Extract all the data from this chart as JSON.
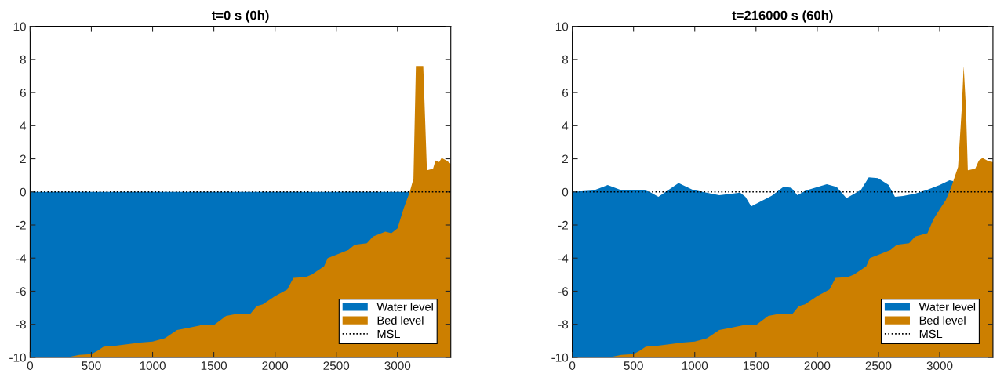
{
  "chart_data": [
    {
      "type": "area",
      "title": "t=0 s (0h)",
      "xlim": [
        0,
        3435
      ],
      "ylim": [
        -10,
        10
      ],
      "xticks": [
        0,
        500,
        1000,
        1500,
        2000,
        2500,
        3000
      ],
      "yticks": [
        -10,
        -8,
        -6,
        -4,
        -2,
        0,
        2,
        4,
        6,
        8,
        10
      ],
      "grid": false,
      "legend": "bottom right",
      "series": [
        {
          "name": "Water level",
          "color": "#0072bd",
          "x": [
            0,
            500,
            1000,
            1500,
            2000,
            2500,
            3000,
            3100
          ],
          "values": [
            0,
            0,
            0,
            0,
            0,
            0,
            0,
            0
          ]
        },
        {
          "name": "Bed level",
          "color": "#cc7f00",
          "x": [
            0,
            300,
            400,
            500,
            550,
            600,
            700,
            800,
            900,
            1000,
            1100,
            1200,
            1300,
            1400,
            1500,
            1600,
            1700,
            1800,
            1850,
            1900,
            2000,
            2100,
            2150,
            2250,
            2300,
            2400,
            2430,
            2500,
            2600,
            2650,
            2750,
            2800,
            2900,
            2950,
            3000,
            3050,
            3100,
            3130,
            3150,
            3210,
            3240,
            3290,
            3310,
            3340,
            3360,
            3400,
            3435
          ],
          "values": [
            -10,
            -10,
            -9.85,
            -9.8,
            -9.6,
            -9.35,
            -9.3,
            -9.2,
            -9.1,
            -9.05,
            -8.85,
            -8.35,
            -8.2,
            -8.05,
            -8.05,
            -7.5,
            -7.35,
            -7.35,
            -6.9,
            -6.8,
            -6.3,
            -5.9,
            -5.2,
            -5.15,
            -5.0,
            -4.5,
            -4.0,
            -3.8,
            -3.5,
            -3.2,
            -3.1,
            -2.7,
            -2.4,
            -2.5,
            -2.2,
            -1.0,
            0.0,
            0.8,
            7.6,
            7.6,
            1.3,
            1.4,
            1.9,
            1.8,
            2.05,
            1.9,
            1.7
          ]
        }
      ],
      "ref_lines": [
        {
          "axis": "y",
          "value": 0,
          "label": "MSL",
          "color": "#000000",
          "line_style": "dotted"
        }
      ]
    },
    {
      "type": "area",
      "title": "t=216000 s (60h)",
      "xlim": [
        0,
        3435
      ],
      "ylim": [
        -10,
        10
      ],
      "xticks": [
        0,
        500,
        1000,
        1500,
        2000,
        2500,
        3000
      ],
      "yticks": [
        -10,
        -8,
        -6,
        -4,
        -2,
        0,
        2,
        4,
        6,
        8,
        10
      ],
      "grid": false,
      "legend": "bottom right",
      "series": [
        {
          "name": "Water level",
          "color": "#0072bd",
          "x": [
            0,
            171,
            289,
            407,
            578,
            632,
            703,
            868,
            985,
            1200,
            1371,
            1414,
            1461,
            1628,
            1725,
            1789,
            1838,
            1907,
            2078,
            2159,
            2239,
            2357,
            2421,
            2496,
            2582,
            2635,
            2700,
            2800,
            2900,
            3000,
            3080,
            3110
          ],
          "values": [
            0,
            0.08,
            0.41,
            0.08,
            0.12,
            0,
            -0.3,
            0.54,
            0.12,
            -0.2,
            -0.05,
            -0.3,
            -0.88,
            -0.23,
            0.31,
            0.25,
            -0.2,
            0.08,
            0.46,
            0.3,
            -0.38,
            0.12,
            0.88,
            0.83,
            0.43,
            -0.3,
            -0.25,
            -0.1,
            0.13,
            0.42,
            0.7,
            0.65
          ]
        },
        {
          "name": "Bed level",
          "color": "#cc7f00",
          "x": [
            0,
            300,
            400,
            500,
            550,
            600,
            700,
            800,
            900,
            1000,
            1100,
            1200,
            1300,
            1400,
            1500,
            1600,
            1700,
            1800,
            1850,
            1900,
            2000,
            2100,
            2150,
            2250,
            2300,
            2400,
            2430,
            2500,
            2600,
            2650,
            2750,
            2800,
            2900,
            2950,
            3000,
            3050,
            3100,
            3150,
            3180,
            3196,
            3215,
            3230,
            3290,
            3320,
            3350,
            3400,
            3435
          ],
          "values": [
            -10,
            -10,
            -9.85,
            -9.8,
            -9.6,
            -9.35,
            -9.3,
            -9.2,
            -9.1,
            -9.05,
            -8.85,
            -8.35,
            -8.2,
            -8.05,
            -8.05,
            -7.5,
            -7.35,
            -7.35,
            -6.9,
            -6.8,
            -6.3,
            -5.9,
            -5.2,
            -5.15,
            -5.0,
            -4.5,
            -4.0,
            -3.8,
            -3.5,
            -3.2,
            -3.1,
            -2.7,
            -2.5,
            -1.65,
            -1.05,
            -0.5,
            0.4,
            1.5,
            5,
            7.6,
            5,
            1.3,
            1.4,
            1.9,
            2.05,
            1.85,
            1.8
          ]
        }
      ],
      "ref_lines": [
        {
          "axis": "y",
          "value": 0,
          "label": "MSL",
          "color": "#000000",
          "line_style": "dotted"
        }
      ]
    }
  ]
}
